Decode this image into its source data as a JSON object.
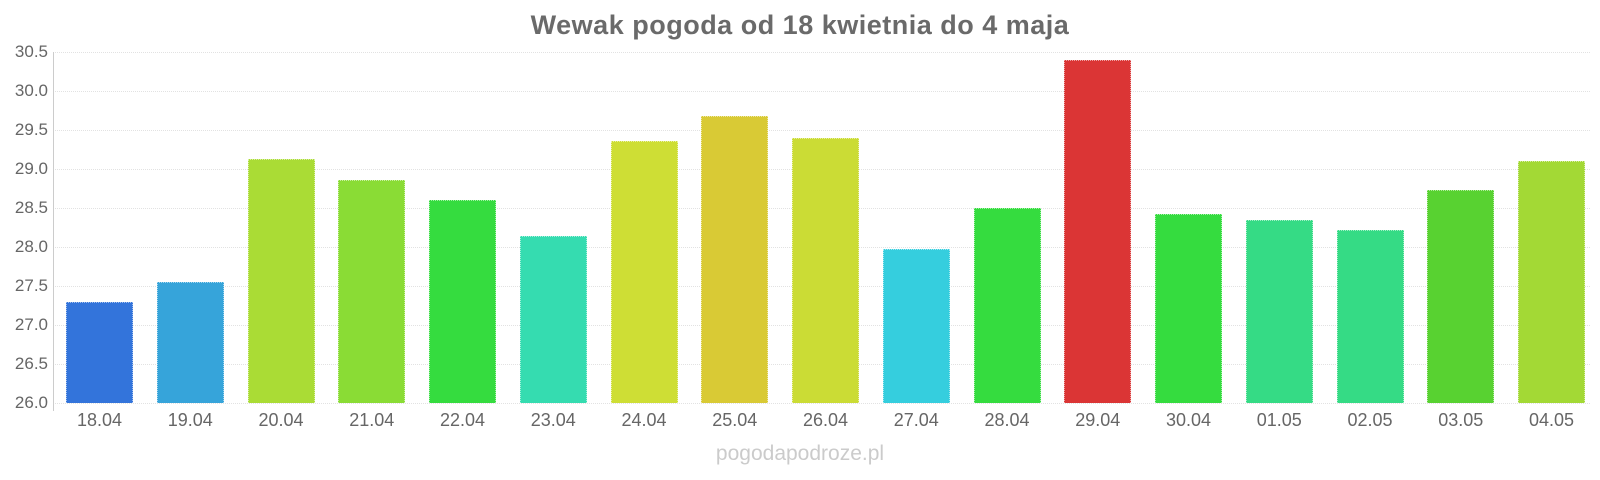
{
  "page": {
    "watermark": "pogodapodroze.pl"
  },
  "chart_data": {
    "type": "bar",
    "title": "Wewak pogoda od 18 kwietnia do 4 maja",
    "xlabel": "",
    "ylabel": "",
    "categories": [
      "18.04",
      "19.04",
      "20.04",
      "21.04",
      "22.04",
      "23.04",
      "24.04",
      "25.04",
      "26.04",
      "27.04",
      "28.04",
      "29.04",
      "30.04",
      "01.05",
      "02.05",
      "03.05",
      "04.05"
    ],
    "values": [
      27.3,
      27.55,
      29.13,
      28.86,
      28.6,
      28.14,
      29.36,
      29.68,
      29.4,
      27.97,
      28.5,
      30.4,
      28.42,
      28.35,
      28.22,
      28.73,
      29.1
    ],
    "bar_colors": [
      "#3374db",
      "#36a4da",
      "#aadc35",
      "#8adc35",
      "#35dc3f",
      "#35dcb0",
      "#cede35",
      "#d9ca35",
      "#cbdc35",
      "#35cede",
      "#35dc3f",
      "#db3535",
      "#35dc3f",
      "#35db85",
      "#35db85",
      "#58d231",
      "#a3d935"
    ],
    "ylim": [
      26.0,
      30.5
    ],
    "ytick_step": 0.5,
    "yticks": [
      "30.5",
      "30.0",
      "29.5",
      "29.0",
      "28.5",
      "28.0",
      "27.5",
      "27.0",
      "26.5",
      "26.0"
    ],
    "grid": "horizontal-dotted",
    "legend": "none",
    "colors": {
      "title_text": "#6a6a6a",
      "axis_text": "#666666",
      "gridline": "#e2e2e2",
      "axis_line": "#cccccc",
      "watermark_text": "#cbcbcb",
      "background": "#ffffff"
    }
  }
}
